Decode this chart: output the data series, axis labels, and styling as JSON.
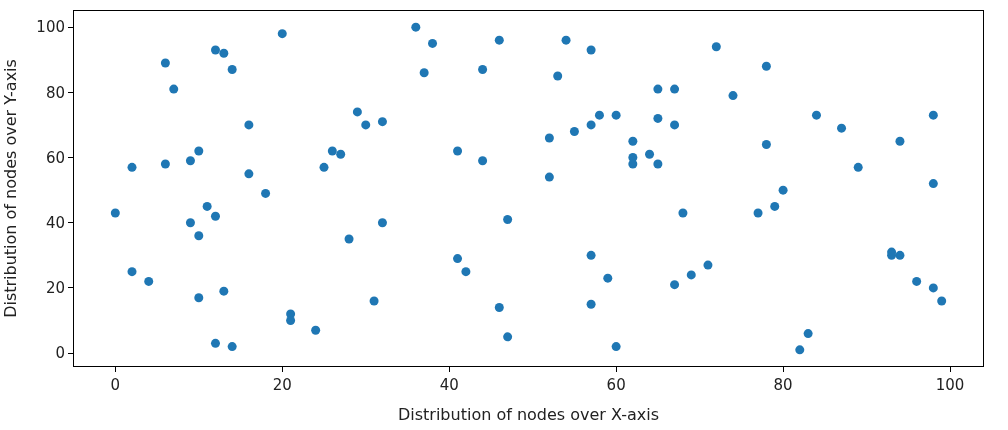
{
  "chart_data": {
    "type": "scatter",
    "xlabel": "Distribution of nodes over X-axis",
    "ylabel": "Distribution of nodes over Y-axis",
    "x": [
      0,
      2,
      2,
      4,
      6,
      6,
      7,
      9,
      9,
      10,
      10,
      10,
      11,
      12,
      12,
      12,
      13,
      13,
      14,
      14,
      16,
      16,
      18,
      20,
      21,
      21,
      24,
      25,
      26,
      27,
      28,
      29,
      30,
      31,
      32,
      32,
      36,
      37,
      38,
      41,
      41,
      42,
      44,
      44,
      46,
      46,
      47,
      47,
      52,
      52,
      53,
      54,
      55,
      57,
      57,
      57,
      57,
      58,
      59,
      60,
      60,
      62,
      62,
      62,
      64,
      65,
      65,
      65,
      67,
      67,
      67,
      68,
      69,
      71,
      72,
      74,
      77,
      78,
      78,
      79,
      80,
      82,
      83,
      84,
      87,
      89,
      93,
      93,
      94,
      94,
      96,
      98,
      98,
      98,
      99
    ],
    "series": [
      {
        "color": "#1f77b4",
        "values": [
          43,
          57,
          25,
          22,
          89,
          58,
          81,
          59,
          40,
          62,
          36,
          17,
          45,
          93,
          42,
          3,
          92,
          19,
          87,
          2,
          70,
          55,
          49,
          98,
          12,
          10,
          7,
          57,
          62,
          61,
          35,
          74,
          70,
          16,
          71,
          40,
          100,
          86,
          95,
          62,
          29,
          25,
          87,
          59,
          96,
          14,
          41,
          5,
          66,
          54,
          85,
          96,
          68,
          93,
          70,
          30,
          15,
          73,
          23,
          73,
          2,
          65,
          60,
          58,
          61,
          81,
          72,
          58,
          81,
          70,
          21,
          43,
          24,
          27,
          94,
          79,
          43,
          88,
          64,
          45,
          50,
          1,
          6,
          73,
          69,
          57,
          31,
          30,
          65,
          30,
          22,
          73,
          52,
          20,
          16
        ]
      }
    ],
    "xlim": [
      -4.95,
      103.95
    ],
    "ylim": [
      -3.95,
      104.95
    ],
    "xticks": [
      0,
      20,
      40,
      60,
      80,
      100
    ],
    "yticks": [
      0,
      20,
      40,
      60,
      80,
      100
    ],
    "marker": "circle"
  }
}
